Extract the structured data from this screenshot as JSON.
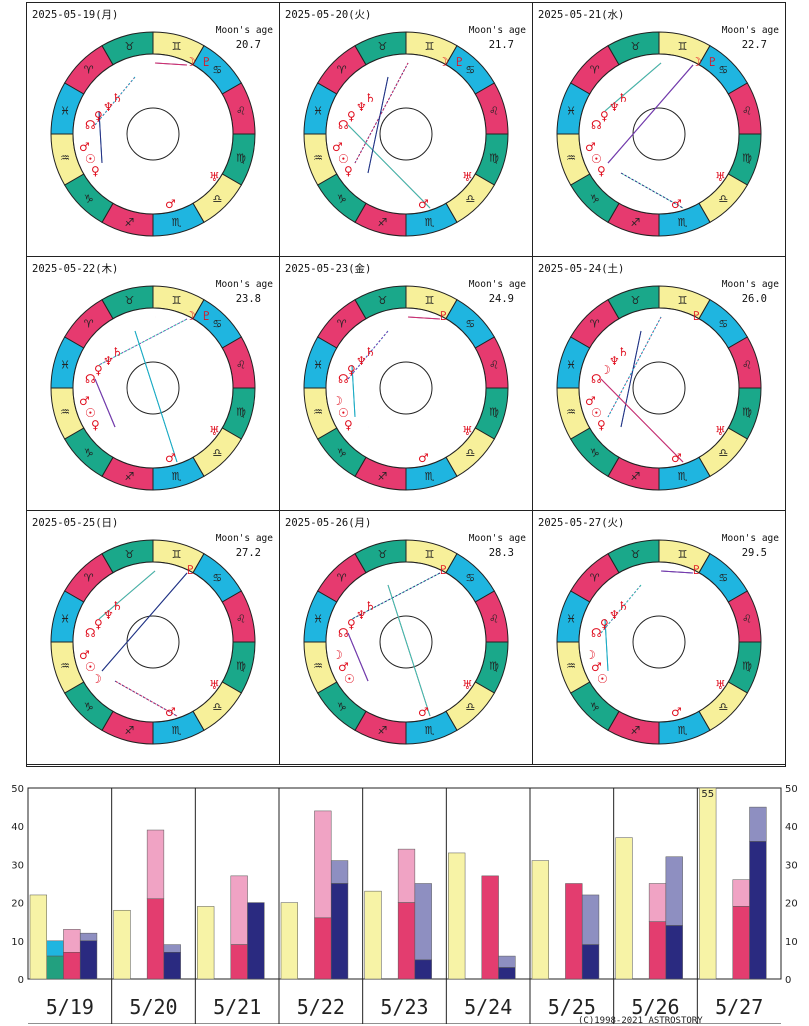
{
  "charts": [
    {
      "date": "2025-05-19(月)",
      "moon_label": "Moon's age",
      "moon_age": "20.7",
      "glyphs": {
        "top": [
          "☽",
          "♇"
        ],
        "left_upper": [
          "☊",
          "♀",
          "♆",
          "♄"
        ],
        "left_lower": [
          "♂",
          "☉",
          "♀"
        ],
        "bottom": [
          "♂"
        ],
        "right": [
          "♅"
        ]
      }
    },
    {
      "date": "2025-05-20(火)",
      "moon_label": "Moon's age",
      "moon_age": "21.7",
      "glyphs": {
        "top": [
          "☽",
          "♇"
        ],
        "left_upper": [
          "☊",
          "♀",
          "♆",
          "♄"
        ],
        "left_lower": [
          "♂",
          "☉",
          "♀"
        ],
        "bottom": [
          "♂"
        ],
        "right": [
          "♅"
        ]
      }
    },
    {
      "date": "2025-05-21(水)",
      "moon_label": "Moon's age",
      "moon_age": "22.7",
      "glyphs": {
        "top": [
          "☽",
          "♇"
        ],
        "left_upper": [
          "☊",
          "♀",
          "♆",
          "♄"
        ],
        "left_lower": [
          "♂",
          "☉",
          "♀"
        ],
        "bottom": [
          "♂"
        ],
        "right": [
          "♅"
        ]
      }
    },
    {
      "date": "2025-05-22(木)",
      "moon_label": "Moon's age",
      "moon_age": "23.8",
      "glyphs": {
        "top": [
          "☽",
          "♇"
        ],
        "left_upper": [
          "☊",
          "♀",
          "♆",
          "♄"
        ],
        "left_lower": [
          "♂",
          "☉",
          "♀"
        ],
        "bottom": [
          "♂"
        ],
        "right": [
          "♅"
        ]
      }
    },
    {
      "date": "2025-05-23(金)",
      "moon_label": "Moon's age",
      "moon_age": "24.9",
      "glyphs": {
        "top": [
          "♇"
        ],
        "left_upper": [
          "☊",
          "♀",
          "♆",
          "♄"
        ],
        "left_lower": [
          "☽",
          "☉",
          "♀"
        ],
        "bottom": [
          "♂"
        ],
        "right": [
          "♅"
        ]
      }
    },
    {
      "date": "2025-05-24(土)",
      "moon_label": "Moon's age",
      "moon_age": "26.0",
      "glyphs": {
        "top": [
          "♇"
        ],
        "left_upper": [
          "☊",
          "☽",
          "♆",
          "♄"
        ],
        "left_lower": [
          "♂",
          "☉",
          "♀"
        ],
        "bottom": [
          "♂"
        ],
        "right": [
          "♅"
        ]
      }
    },
    {
      "date": "2025-05-25(日)",
      "moon_label": "Moon's age",
      "moon_age": "27.2",
      "glyphs": {
        "top": [
          "♇"
        ],
        "left_upper": [
          "☊",
          "♀",
          "♆",
          "♄"
        ],
        "left_lower": [
          "♂",
          "☉",
          "☽"
        ],
        "bottom": [
          "♂"
        ],
        "right": [
          "♅"
        ]
      }
    },
    {
      "date": "2025-05-26(月)",
      "moon_label": "Moon's age",
      "moon_age": "28.3",
      "glyphs": {
        "top": [
          "♇"
        ],
        "left_upper": [
          "☊",
          "♀",
          "♆",
          "♄"
        ],
        "left_lower": [
          "☽",
          "♂",
          "☉"
        ],
        "bottom": [
          "♂"
        ],
        "right": [
          "♅"
        ]
      }
    },
    {
      "date": "2025-05-27(火)",
      "moon_label": "Moon's age",
      "moon_age": "29.5",
      "glyphs": {
        "top": [
          "♇"
        ],
        "left_upper": [
          "☊",
          "♀",
          "♆",
          "♄"
        ],
        "left_lower": [
          "☽",
          "♂",
          "☉"
        ],
        "bottom": [
          "♂"
        ],
        "right": [
          "♅"
        ]
      }
    }
  ],
  "zodiac": {
    "signs": [
      "♈",
      "♉",
      "♊",
      "♋",
      "♌",
      "♍",
      "♎",
      "♏",
      "♐",
      "♑",
      "♒",
      "♓"
    ],
    "colors": [
      "#e63a6f",
      "#1aa88a",
      "#f7f09a",
      "#1fb5e0"
    ]
  },
  "chart_data": {
    "type": "bar",
    "categories": [
      "5/19",
      "5/20",
      "5/21",
      "5/22",
      "5/23",
      "5/24",
      "5/25",
      "5/26",
      "5/27"
    ],
    "ylim": [
      0,
      50
    ],
    "yticks": [
      0,
      10,
      20,
      30,
      40,
      50
    ],
    "groups": [
      {
        "yellow": 22,
        "pair1": {
          "low": 6,
          "high": 10,
          "low_color": "#22a07f",
          "high_color": "#1fb5e0"
        },
        "pair2": {
          "low": 7,
          "high": 13
        },
        "pair3": {
          "low": 10,
          "high": 12
        }
      },
      {
        "yellow": 18,
        "pair2": {
          "low": 21,
          "high": 39
        },
        "pair3": {
          "low": 7,
          "high": 9
        }
      },
      {
        "yellow": 19,
        "pair2": {
          "low": 9,
          "high": 27
        },
        "pair3": {
          "low": 20,
          "high": 20
        }
      },
      {
        "yellow": 20,
        "pair2": {
          "low": 16,
          "high": 44
        },
        "pair3": {
          "low": 25,
          "high": 31
        }
      },
      {
        "yellow": 23,
        "pair2": {
          "low": 20,
          "high": 34
        },
        "pair3": {
          "low": 5,
          "high": 25
        }
      },
      {
        "yellow": 33,
        "pair2": {
          "low": 27,
          "high": 27
        },
        "pair3": {
          "low": 3,
          "high": 6
        }
      },
      {
        "yellow": 31,
        "pair2": {
          "low": 25,
          "high": 25
        },
        "pair3": {
          "low": 9,
          "high": 22
        }
      },
      {
        "yellow": 37,
        "pair2": {
          "low": 15,
          "high": 25
        },
        "pair3": {
          "low": 14,
          "high": 32
        }
      },
      {
        "yellow": 55,
        "yellow_label": "55",
        "pair2": {
          "low": 19,
          "high": 26
        },
        "pair3": {
          "low": 36,
          "high": 45
        }
      }
    ],
    "colors": {
      "yellow": "#f7f3a6",
      "pink_dark": "#e33d6f",
      "pink_light": "#f0a3c4",
      "navy_dark": "#2a2a80",
      "navy_light": "#8e8fc1"
    }
  },
  "copyright": "(C)1998-2021 ASTROSTORY"
}
